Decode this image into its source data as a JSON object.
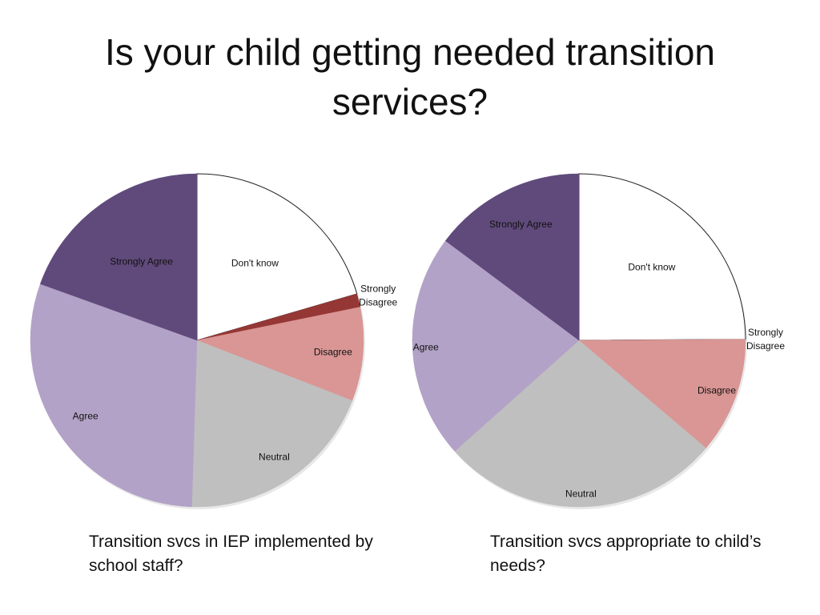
{
  "title": "Is your child getting needed transition services?",
  "chart_data": [
    {
      "type": "pie",
      "caption": "Transition svcs in IEP implemented by school staff?",
      "categories": [
        "Don't know",
        "Strongly Disagree",
        "Disagree",
        "Neutral",
        "Agree",
        "Strongly Agree"
      ],
      "values": [
        20.5,
        1.3,
        9.1,
        19.6,
        30.0,
        19.5
      ],
      "colors": [
        "#ffffff",
        "#953735",
        "#d99694",
        "#bfbfbf",
        "#b3a2c7",
        "#604a7b"
      ]
    },
    {
      "type": "pie",
      "caption": "Transition svcs appropriate to child’s needs?",
      "categories": [
        "Don't know",
        "Strongly Disagree",
        "Disagree",
        "Neutral",
        "Agree",
        "Strongly Agree"
      ],
      "values": [
        24.9,
        0.0,
        11.3,
        27.2,
        21.8,
        14.8
      ],
      "colors": [
        "#ffffff",
        "#953735",
        "#d99694",
        "#bfbfbf",
        "#b3a2c7",
        "#604a7b"
      ]
    }
  ]
}
